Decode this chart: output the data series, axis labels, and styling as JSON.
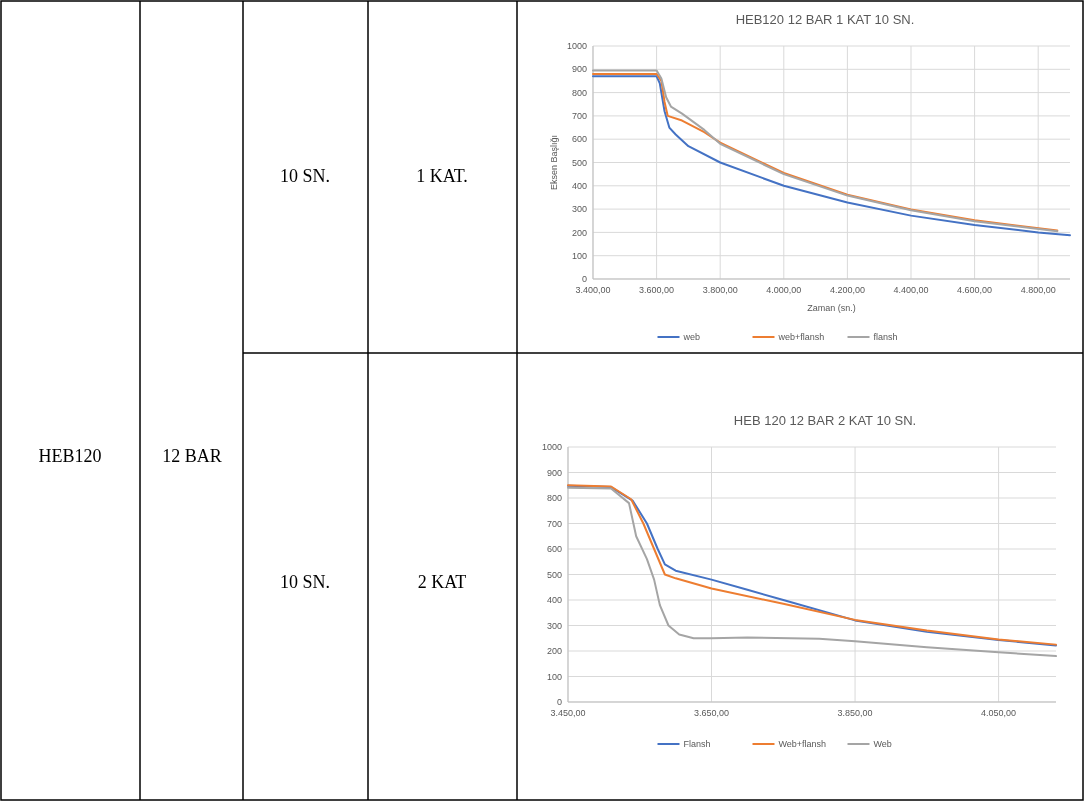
{
  "chart_data": [
    {
      "type": "other",
      "annotations": [
        "HEB120",
        "12 BAR",
        "10 SN.",
        "1 KAT.",
        "10 SN.",
        "2 KAT"
      ]
    },
    {
      "type": "line",
      "title": "HEB120 12 BAR 1 KAT 10  SN.",
      "xlabel": "Zaman (sn.)",
      "ylabel": "Eksen Başlığı",
      "xlim": [
        3400,
        4900
      ],
      "ylim": [
        0,
        1000
      ],
      "xticks": [
        {
          "value": 3400,
          "label": "3.400,00"
        },
        {
          "value": 3600,
          "label": "3.600,00"
        },
        {
          "value": 3800,
          "label": "3.800,00"
        },
        {
          "value": 4000,
          "label": "4.000,00"
        },
        {
          "value": 4200,
          "label": "4.200,00"
        },
        {
          "value": 4400,
          "label": "4.400,00"
        },
        {
          "value": 4600,
          "label": "4.600,00"
        },
        {
          "value": 4800,
          "label": "4.800,00"
        }
      ],
      "yticks": [
        0,
        100,
        200,
        300,
        400,
        500,
        600,
        700,
        800,
        900,
        1000
      ],
      "grid": true,
      "legend": "bottom",
      "marker": "none",
      "series": [
        {
          "name": "web",
          "color": "#4472c4",
          "x": [
            3400,
            3500,
            3600,
            3610,
            3625,
            3640,
            3660,
            3700,
            3800,
            4000,
            4200,
            4400,
            4600,
            4800,
            4900
          ],
          "values": [
            870,
            870,
            870,
            840,
            720,
            650,
            620,
            570,
            500,
            400,
            328,
            272,
            232,
            200,
            188
          ]
        },
        {
          "name": "web+flansh",
          "color": "#ed7d31",
          "x": [
            3400,
            3500,
            3600,
            3615,
            3625,
            3635,
            3680,
            3750,
            3800,
            4000,
            4200,
            4400,
            4600,
            4860
          ],
          "values": [
            880,
            880,
            880,
            850,
            760,
            700,
            680,
            630,
            585,
            455,
            362,
            298,
            252,
            208
          ]
        },
        {
          "name": "flansh",
          "color": "#a5a5a5",
          "x": [
            3400,
            3500,
            3600,
            3615,
            3630,
            3645,
            3680,
            3750,
            3800,
            4000,
            4200,
            4400,
            4600,
            4860
          ],
          "values": [
            895,
            895,
            895,
            860,
            780,
            740,
            710,
            640,
            580,
            450,
            358,
            295,
            248,
            205
          ]
        }
      ]
    },
    {
      "type": "line",
      "title": "HEB 120 12 BAR 2 KAT 10 SN.",
      "xlim": [
        3450,
        4130
      ],
      "ylim": [
        0,
        1000
      ],
      "xticks": [
        {
          "value": 3450,
          "label": "3.450,00"
        },
        {
          "value": 3650,
          "label": "3.650,00"
        },
        {
          "value": 3850,
          "label": "3.850,00"
        },
        {
          "value": 4050,
          "label": "4.050,00"
        }
      ],
      "yticks": [
        0,
        100,
        200,
        300,
        400,
        500,
        600,
        700,
        800,
        900,
        1000
      ],
      "grid": true,
      "legend": "bottom",
      "marker": "none",
      "series": [
        {
          "name": "Flansh",
          "color": "#4472c4",
          "x": [
            3450,
            3510,
            3540,
            3560,
            3575,
            3585,
            3600,
            3650,
            3700,
            3750,
            3850,
            3950,
            4050,
            4130
          ],
          "values": [
            848,
            843,
            790,
            700,
            600,
            540,
            515,
            480,
            440,
            400,
            320,
            275,
            243,
            222
          ]
        },
        {
          "name": "Web+flansh",
          "color": "#ed7d31",
          "x": [
            3450,
            3510,
            3538,
            3555,
            3570,
            3585,
            3600,
            3650,
            3750,
            3850,
            3950,
            4050,
            4130
          ],
          "values": [
            850,
            845,
            795,
            700,
            600,
            500,
            485,
            445,
            385,
            322,
            280,
            245,
            225
          ]
        },
        {
          "name": "Web",
          "color": "#a5a5a5",
          "x": [
            3450,
            3510,
            3535,
            3545,
            3560,
            3570,
            3578,
            3590,
            3605,
            3625,
            3650,
            3700,
            3800,
            3850,
            3950,
            4050,
            4130
          ],
          "values": [
            840,
            837,
            780,
            650,
            560,
            480,
            380,
            300,
            265,
            250,
            250,
            253,
            248,
            238,
            215,
            195,
            180
          ]
        }
      ]
    }
  ]
}
